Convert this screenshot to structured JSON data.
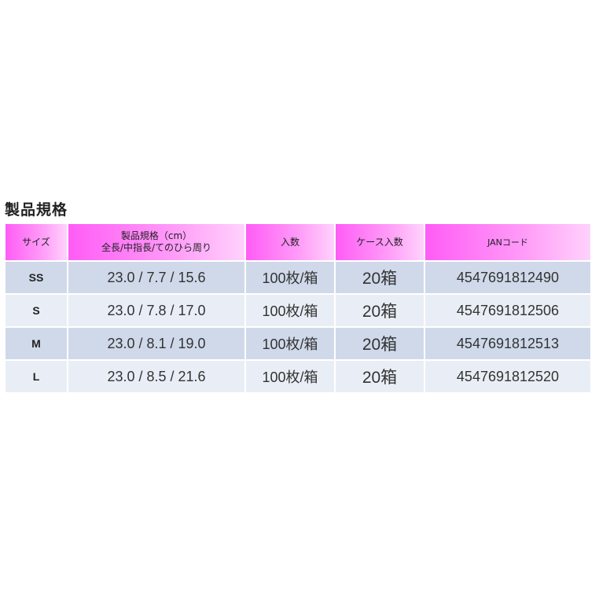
{
  "title": "製品規格",
  "headers": [
    "サイズ",
    "製品規格（cm）",
    "全長/中指長/てのひら周り",
    "入数",
    "ケース入数",
    "JANコード"
  ],
  "rows": [
    {
      "size": "SS",
      "spec": "23.0 / 7.7 / 15.6",
      "qty": "100枚/箱",
      "case": "20箱",
      "jan": "4547691812490"
    },
    {
      "size": "S",
      "spec": "23.0 / 7.8 / 17.0",
      "qty": "100枚/箱",
      "case": "20箱",
      "jan": "4547691812506"
    },
    {
      "size": "M",
      "spec": "23.0 / 8.1 / 19.0",
      "qty": "100枚/箱",
      "case": "20箱",
      "jan": "4547691812513"
    },
    {
      "size": "L",
      "spec": "23.0 / 8.5 / 21.6",
      "qty": "100枚/箱",
      "case": "20箱",
      "jan": "4547691812520"
    }
  ],
  "colors": {
    "header_start": "#ff5cf5",
    "header_end": "#ffd2fc",
    "row_odd": "#cfd9ea",
    "row_even": "#e9eef6"
  }
}
